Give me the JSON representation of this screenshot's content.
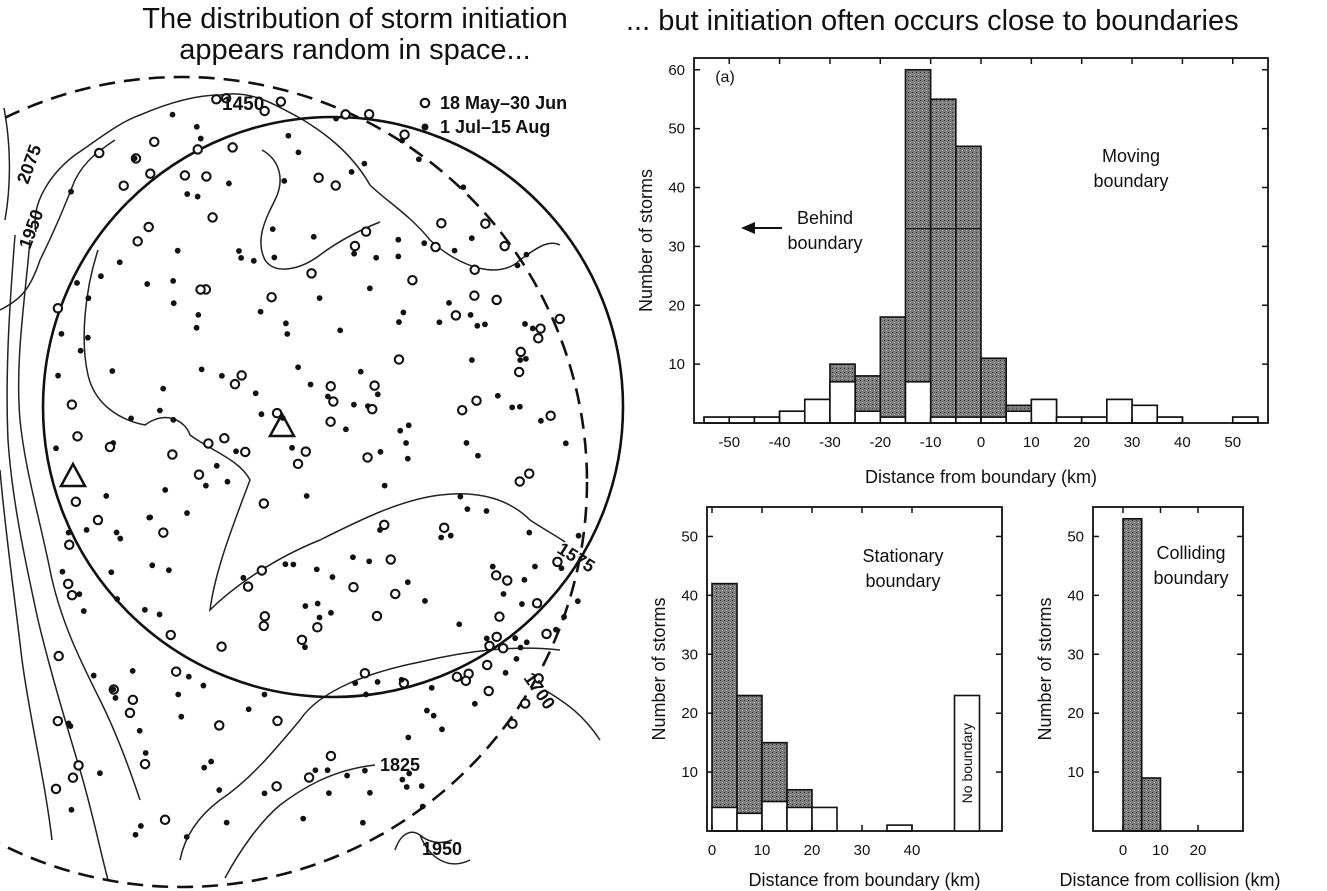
{
  "headings": {
    "left_line1": "The distribution of storm initiation",
    "left_line2": "appears random in space...",
    "right": "... but initiation often occurs close to boundaries"
  },
  "map": {
    "legend": {
      "open_label": "18 May–30 Jun",
      "filled_label": "1 Jul–15 Aug"
    },
    "contour_labels": [
      "1450",
      "2075",
      "1950",
      "1575",
      "1700",
      "1825",
      "1950"
    ]
  },
  "chart_data": [
    {
      "type": "bar",
      "panel_label": "(a)",
      "title": "",
      "xlabel": "Distance from boundary (km)",
      "ylabel": "Number of storms",
      "xlim": [
        -57,
        57
      ],
      "ylim": [
        0,
        62
      ],
      "xticks": [
        -50,
        -40,
        -30,
        -20,
        -10,
        0,
        10,
        20,
        30,
        40,
        50
      ],
      "yticks": [
        10,
        20,
        30,
        40,
        50,
        60
      ],
      "bin_width": 5,
      "bin_starts": [
        -55,
        -50,
        -45,
        -40,
        -35,
        -30,
        -25,
        -20,
        -15,
        -10,
        -5,
        0,
        5,
        10,
        15,
        20,
        25,
        30,
        35,
        40,
        45,
        50
      ],
      "series": [
        {
          "name": "",
          "values": [
            1,
            1,
            1,
            2,
            4,
            10,
            8,
            18,
            60,
            55,
            47,
            11,
            3,
            4,
            1,
            1,
            4,
            3,
            1,
            0,
            0,
            1
          ]
        },
        {
          "name": "",
          "values": [
            1,
            1,
            1,
            2,
            4,
            7,
            2,
            1,
            7,
            1,
            1,
            1,
            2,
            4,
            1,
            1,
            4,
            3,
            1,
            0,
            0,
            1
          ]
        }
      ],
      "annotations": {
        "moving_line1": "Moving",
        "moving_line2": "boundary",
        "behind_line1": "Behind",
        "behind_line2": "boundary"
      }
    },
    {
      "type": "bar",
      "title": "",
      "xlabel": "Distance from boundary (km)",
      "ylabel": "Number of storms",
      "xlim": [
        -1,
        58
      ],
      "ylim": [
        0,
        55
      ],
      "xticks": [
        0,
        10,
        20,
        30,
        40
      ],
      "yticks": [
        10,
        20,
        30,
        40,
        50
      ],
      "bin_width": 5,
      "bin_starts": [
        0,
        5,
        10,
        15,
        20,
        25,
        30,
        35,
        40,
        45,
        50
      ],
      "series": [
        {
          "name": "",
          "values": [
            42,
            23,
            15,
            7,
            0,
            0,
            0,
            0,
            0,
            0,
            0
          ]
        },
        {
          "name": "",
          "values": [
            4,
            3,
            5,
            4,
            4,
            0,
            0,
            1,
            0,
            0,
            0
          ]
        }
      ],
      "no_boundary_bar": {
        "label": "No boundary",
        "value": 23
      },
      "annotations": {
        "line1": "Stationary",
        "line2": "boundary"
      }
    },
    {
      "type": "bar",
      "title": "",
      "xlabel": "Distance from collision (km)",
      "ylabel": "Number of storms",
      "xlim": [
        -8,
        32
      ],
      "ylim": [
        0,
        55
      ],
      "xticks": [
        0,
        10,
        20
      ],
      "yticks": [
        10,
        20,
        30,
        40,
        50
      ],
      "bin_width": 5,
      "bin_starts": [
        0,
        5
      ],
      "series": [
        {
          "name": "",
          "values": [
            53,
            9
          ]
        }
      ],
      "annotations": {
        "line1": "Colliding",
        "line2": "boundary"
      }
    }
  ]
}
